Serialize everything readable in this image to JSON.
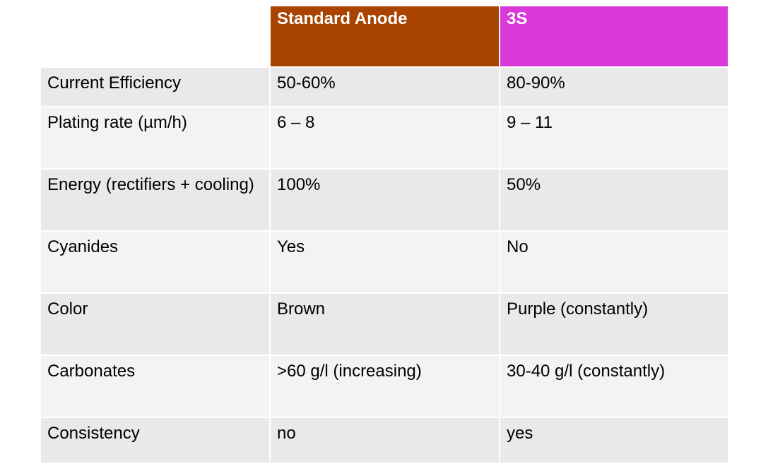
{
  "colors": {
    "standard_anode_header": "#a84300",
    "three_s_header": "#d939d8",
    "row_odd": "#e9e9e9",
    "row_even": "#f3f3f3"
  },
  "table": {
    "headers": [
      "",
      "Standard Anode",
      "3S"
    ],
    "rows": [
      [
        "Current Efficiency",
        "50-60%",
        "80-90%"
      ],
      [
        "Plating rate (µm/h)",
        "6 – 8",
        "9 – 11"
      ],
      [
        "Energy (rectifiers + cooling)",
        "100%",
        "50%"
      ],
      [
        "Cyanides",
        "Yes",
        "No"
      ],
      [
        "Color",
        "Brown",
        "Purple (constantly)"
      ],
      [
        "Carbonates",
        ">60 g/l (increasing)",
        "30-40 g/l (constantly)"
      ],
      [
        "Consistency",
        "no",
        "yes"
      ]
    ]
  }
}
